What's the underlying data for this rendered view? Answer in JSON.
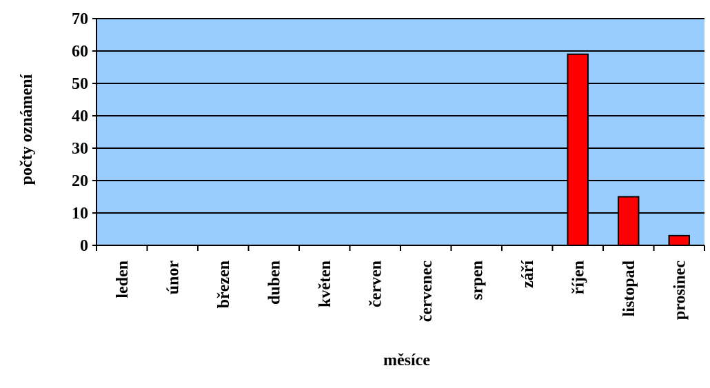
{
  "chart_data": {
    "type": "bar",
    "categories": [
      "leden",
      "únor",
      "březen",
      "duben",
      "květen",
      "červen",
      "červenec",
      "srpen",
      "září",
      "říjen",
      "listopad",
      "prosinec"
    ],
    "values": [
      0,
      0,
      0,
      0,
      0,
      0,
      0,
      0,
      0,
      59,
      15,
      3
    ],
    "xlabel": "měsíce",
    "ylabel": "počty oznámení",
    "ylim": [
      0,
      70
    ],
    "yticks": [
      0,
      10,
      20,
      30,
      40,
      50,
      60,
      70
    ],
    "grid": true,
    "legend": "none",
    "colors": {
      "plot_background": "#99ccff",
      "bar_fill": "#ff0000",
      "bar_stroke": "#000000",
      "gridline": "#000000"
    }
  }
}
